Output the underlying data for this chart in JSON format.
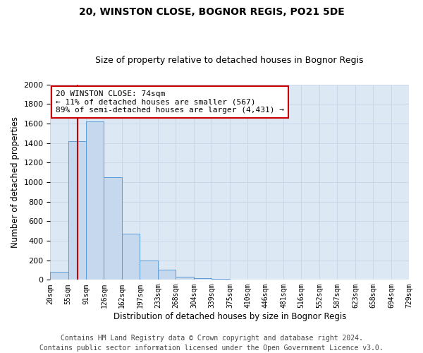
{
  "title": "20, WINSTON CLOSE, BOGNOR REGIS, PO21 5DE",
  "subtitle": "Size of property relative to detached houses in Bognor Regis",
  "xlabel": "Distribution of detached houses by size in Bognor Regis",
  "ylabel": "Number of detached properties",
  "footer_line1": "Contains HM Land Registry data © Crown copyright and database right 2024.",
  "footer_line2": "Contains public sector information licensed under the Open Government Licence v3.0.",
  "annotation_title": "20 WINSTON CLOSE: 74sqm",
  "annotation_line1": "← 11% of detached houses are smaller (567)",
  "annotation_line2": "89% of semi-detached houses are larger (4,431) →",
  "subject_value": 74,
  "bin_edges": [
    20,
    55,
    91,
    126,
    162,
    197,
    233,
    268,
    304,
    339,
    375,
    410,
    446,
    481,
    516,
    552,
    587,
    623,
    658,
    694,
    729
  ],
  "bar_heights": [
    80,
    1420,
    1620,
    1050,
    470,
    200,
    100,
    30,
    20,
    8,
    5,
    5,
    4,
    3,
    3,
    3,
    2,
    2,
    2,
    2
  ],
  "bar_color": "#c5d8ee",
  "bar_edge_color": "#5b9bd5",
  "vline_color": "#cc0000",
  "annotation_box_color": "#cc0000",
  "ylim": [
    0,
    2000
  ],
  "yticks": [
    0,
    200,
    400,
    600,
    800,
    1000,
    1200,
    1400,
    1600,
    1800,
    2000
  ],
  "grid_color": "#c8d8e8",
  "bg_color": "#dce8f4",
  "title_fontsize": 10,
  "subtitle_fontsize": 9,
  "xlabel_fontsize": 8.5,
  "ylabel_fontsize": 8.5,
  "annotation_fontsize": 8,
  "footer_fontsize": 7
}
